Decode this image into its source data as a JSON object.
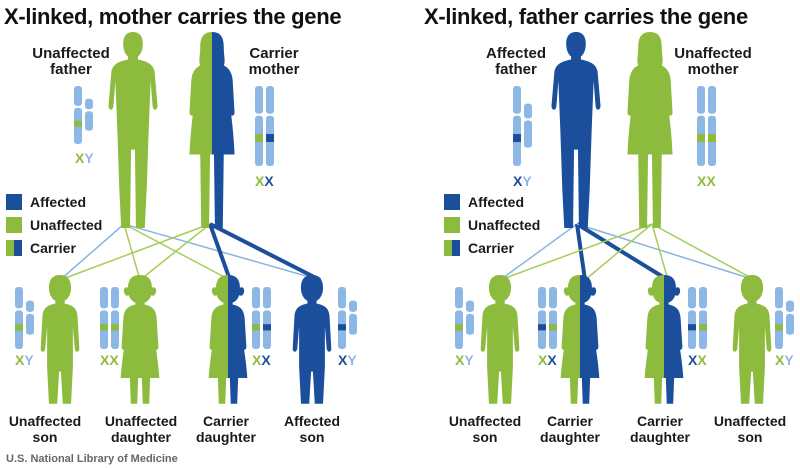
{
  "colors": {
    "affected": "#1b4f9c",
    "unaffected": "#8dbb3e",
    "chromosome": "#8db8e6",
    "line_green": "#a6cc5a",
    "line_blue": "#8ab4df",
    "text": "#1a1a1a"
  },
  "legend": {
    "affected": "Affected",
    "unaffected": "Unaffected",
    "carrier": "Carrier"
  },
  "panels": [
    {
      "title": "X-linked, mother carries the gene",
      "father": {
        "label": "Unaffected father",
        "line1": "Unaffected",
        "line2": "father",
        "chr1": "X",
        "chr2": "Y",
        "status": "unaffected"
      },
      "mother": {
        "label": "Carrier mother",
        "line1": "Carrier",
        "line2": "mother",
        "chr1": "X",
        "chr2": "X",
        "status": "carrier"
      },
      "children": [
        {
          "line1": "Unaffected",
          "line2": "son",
          "chr1": "X",
          "chr2": "Y",
          "status": "unaffected"
        },
        {
          "line1": "Unaffected",
          "line2": "daughter",
          "chr1": "X",
          "chr2": "X",
          "status": "unaffected"
        },
        {
          "line1": "Carrier",
          "line2": "daughter",
          "chr1": "X",
          "chr2": "X",
          "status": "carrier"
        },
        {
          "line1": "Affected",
          "line2": "son",
          "chr1": "X",
          "chr2": "Y",
          "status": "affected"
        }
      ]
    },
    {
      "title": "X-linked, father carries the gene",
      "father": {
        "label": "Affected father",
        "line1": "Affected",
        "line2": "father",
        "chr1": "X",
        "chr2": "Y",
        "status": "affected"
      },
      "mother": {
        "label": "Unaffected mother",
        "line1": "Unaffected",
        "line2": "mother",
        "chr1": "X",
        "chr2": "X",
        "status": "unaffected"
      },
      "children": [
        {
          "line1": "Unaffected",
          "line2": "son",
          "chr1": "X",
          "chr2": "Y",
          "status": "unaffected"
        },
        {
          "line1": "Carrier",
          "line2": "daughter",
          "chr1": "X",
          "chr2": "X",
          "status": "carrier"
        },
        {
          "line1": "Carrier",
          "line2": "daughter",
          "chr1": "X",
          "chr2": "X",
          "status": "carrier"
        },
        {
          "line1": "Unaffected",
          "line2": "son",
          "chr1": "X",
          "chr2": "Y",
          "status": "unaffected"
        }
      ]
    }
  ],
  "credit": "U.S. National Library of Medicine"
}
